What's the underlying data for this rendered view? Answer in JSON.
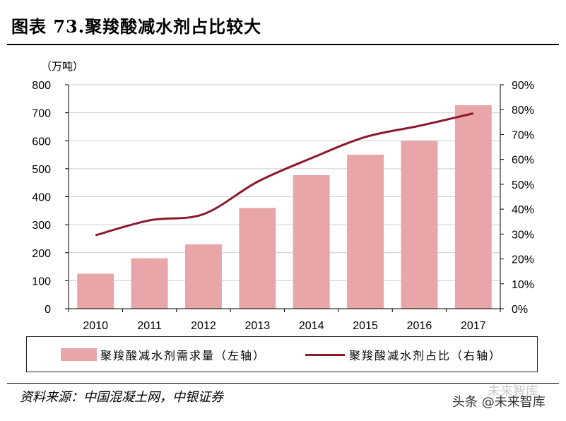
{
  "title": "图表 73.聚羧酸减水剂占比较大",
  "unit_label": "（万吨）",
  "legend": {
    "bar_label": "聚羧酸减水剂需求量（左轴）",
    "line_label": "聚羧酸减水剂占比（右轴）"
  },
  "source": "资料来源：中国混凝土网，中银证券",
  "watermark": "头条 @未来智库",
  "watermark_brand": "未来智库",
  "colors": {
    "bar": "#e8a6a8",
    "line": "#8b1a2b",
    "grid": "#cfcfcf"
  },
  "chart_data": {
    "type": "bar+line",
    "categories": [
      "2010",
      "2011",
      "2012",
      "2013",
      "2014",
      "2015",
      "2016",
      "2017"
    ],
    "series": [
      {
        "name": "聚羧酸减水剂需求量（左轴）",
        "type": "bar",
        "axis": "left",
        "values": [
          125,
          180,
          230,
          360,
          477,
          550,
          600,
          727
        ]
      },
      {
        "name": "聚羧酸减水剂占比（右轴）",
        "type": "line",
        "axis": "right",
        "values": [
          29.5,
          35.5,
          38.0,
          51.0,
          60.5,
          69.0,
          73.5,
          78.5
        ]
      }
    ],
    "left_axis": {
      "min": 0,
      "max": 800,
      "ticks": [
        "0",
        "100",
        "200",
        "300",
        "400",
        "500",
        "600",
        "700",
        "800"
      ]
    },
    "right_axis": {
      "min": 0,
      "max": 90,
      "ticks": [
        "0%",
        "10%",
        "20%",
        "30%",
        "40%",
        "50%",
        "60%",
        "70%",
        "80%",
        "90%"
      ]
    },
    "grid": true,
    "legend_position": "bottom"
  }
}
